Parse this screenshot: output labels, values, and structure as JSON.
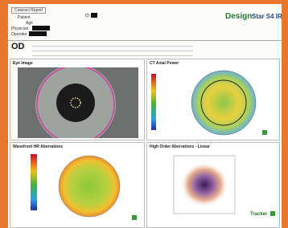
{
  "header": {
    "title": "Cataract Report",
    "fields": [
      "Patient",
      "Age",
      "Physician",
      "Operator"
    ],
    "id_label": "ID"
  },
  "logo": {
    "brand": "Design",
    "product": "Star S4 IR"
  },
  "eye": "OD",
  "panels": [
    "Eye Image",
    "CT Axial Power",
    "Wavefront HR Aberrations",
    "High Order Aberrations - Linear"
  ],
  "tracker": "Tracker"
}
